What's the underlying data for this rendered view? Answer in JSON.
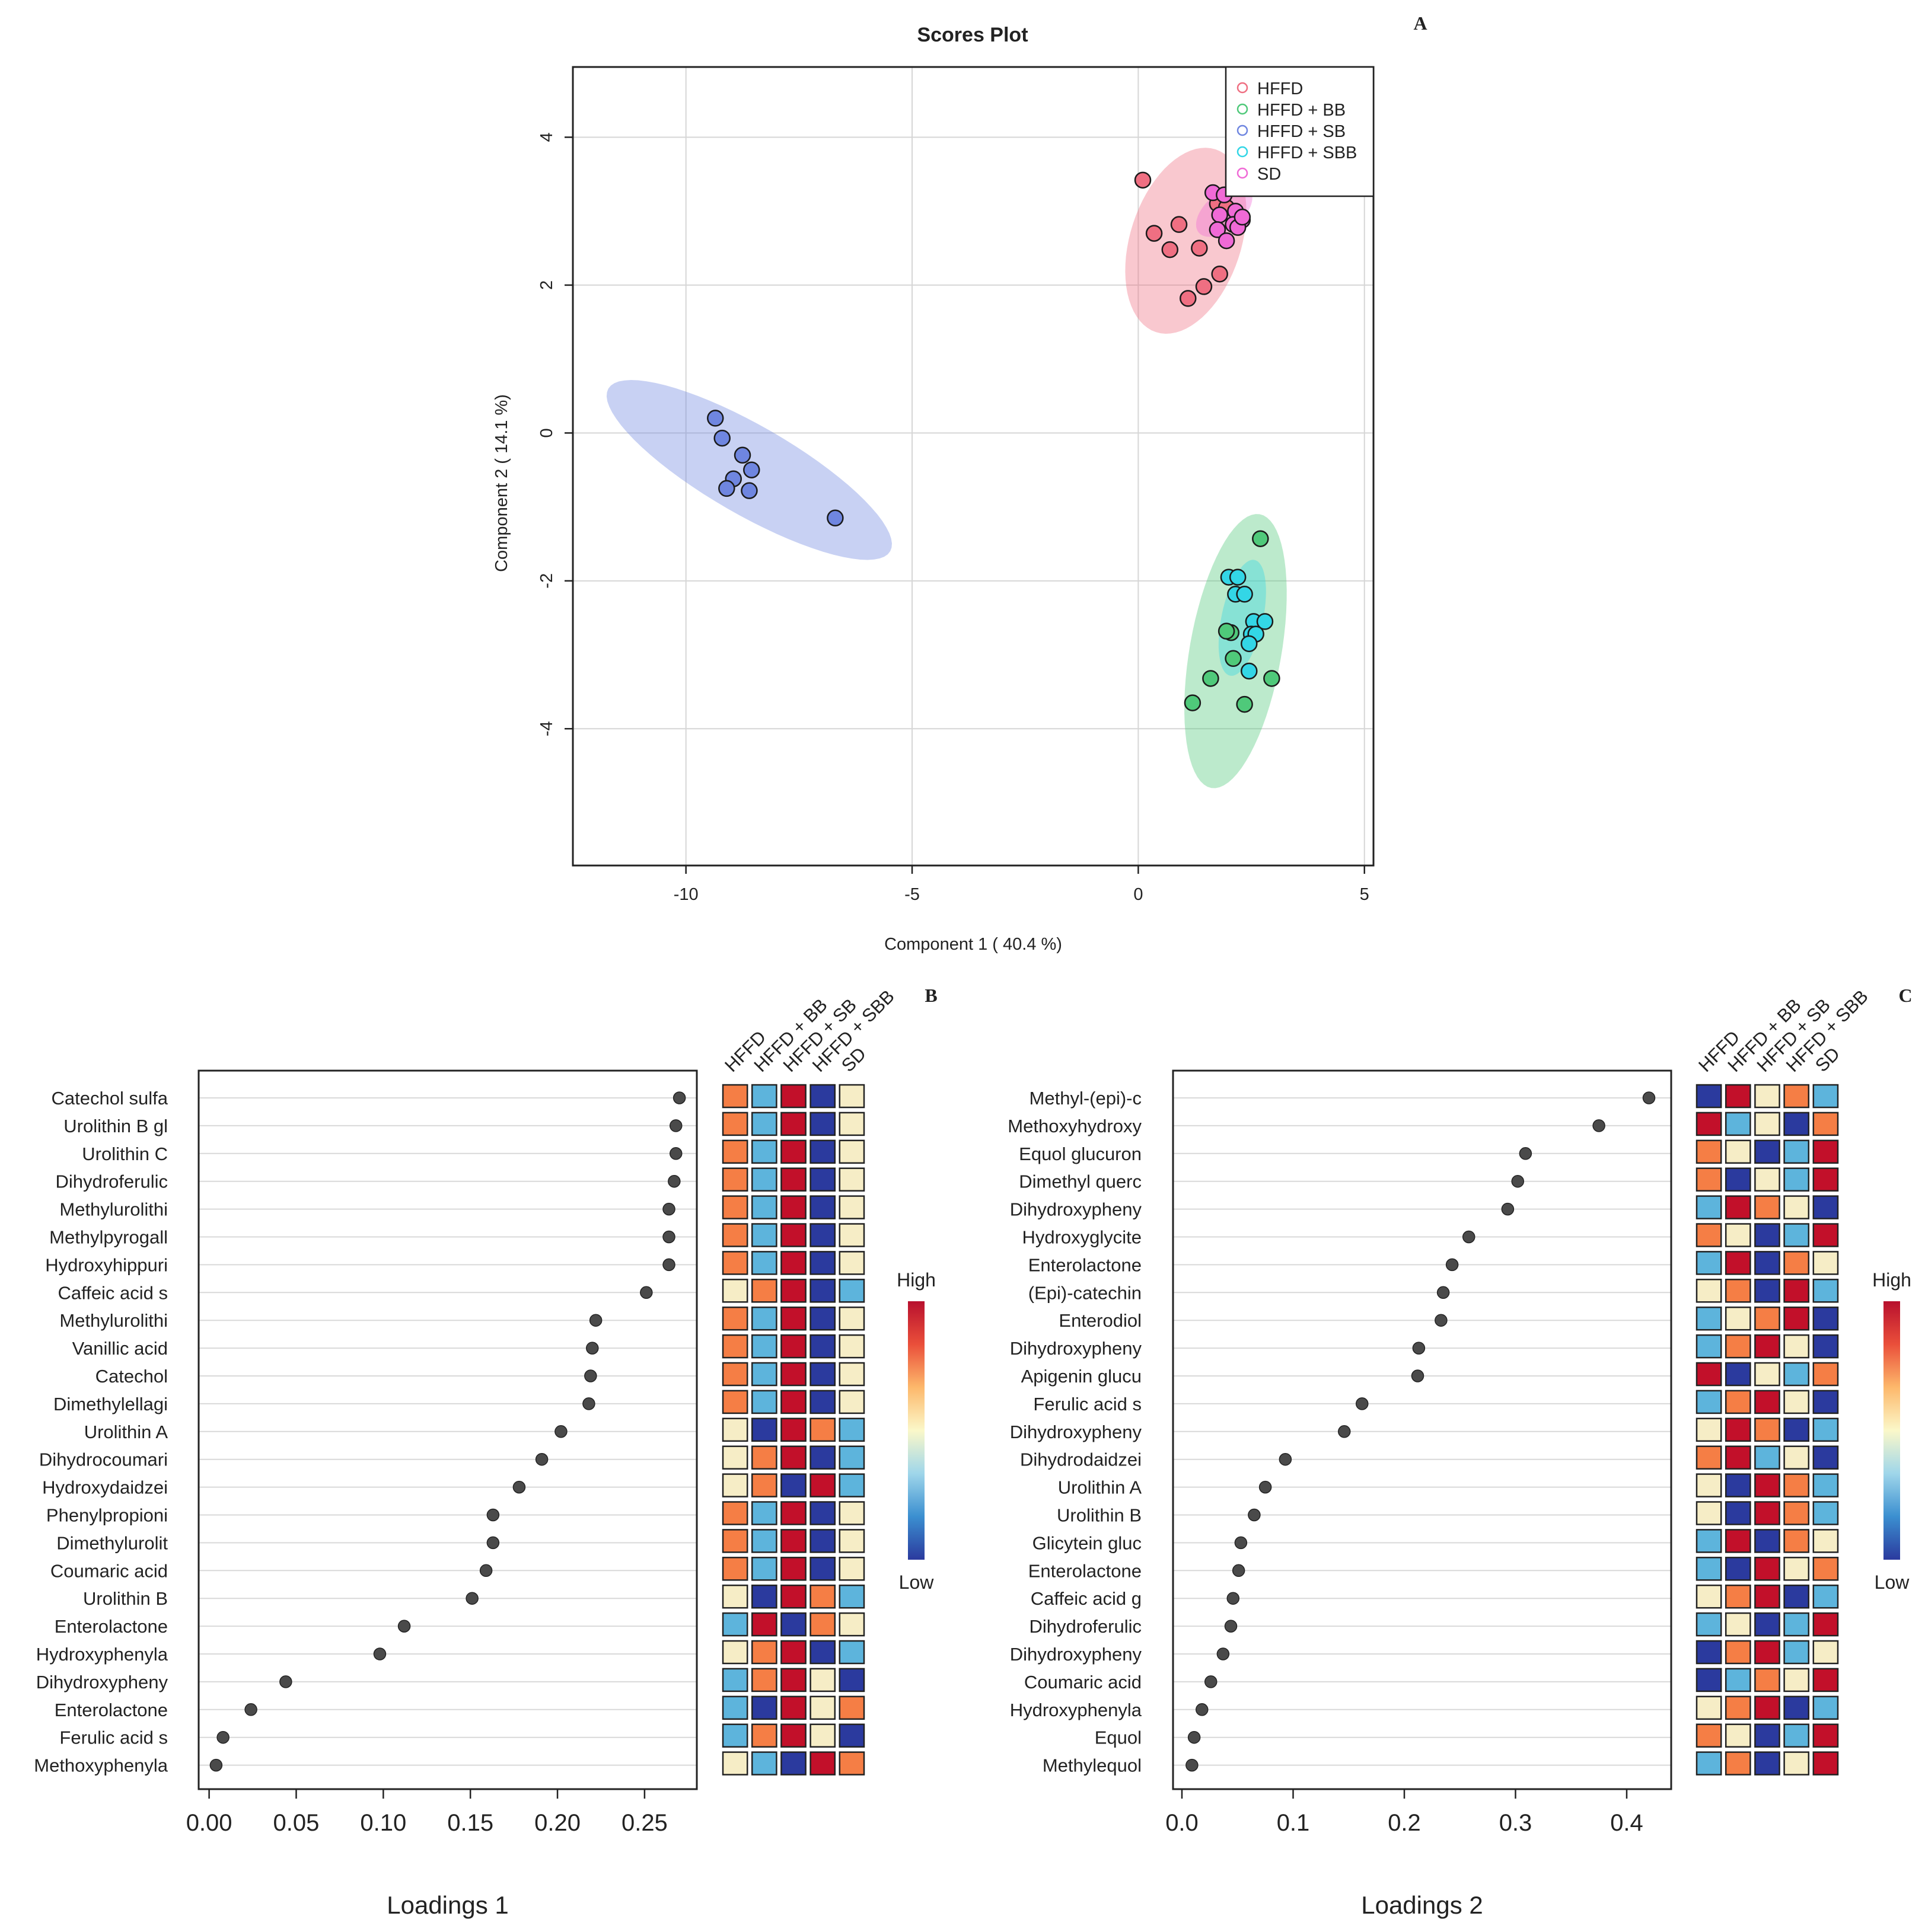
{
  "chart_data": [
    {
      "type": "scatter",
      "panel_label": "A",
      "title": "Scores Plot",
      "xlabel": "Component 1 ( 40.4 %)",
      "ylabel": "Component 2 ( 14.1 %)",
      "xlim": [
        -12.5,
        5.2
      ],
      "ylim": [
        -5.85,
        4.95
      ],
      "xticks": [
        -10,
        -5,
        0,
        5
      ],
      "yticks": [
        -4,
        -2,
        0,
        2,
        4
      ],
      "xtick_labels": [
        "-10",
        "-5",
        "0",
        "5"
      ],
      "ytick_labels": [
        "-4",
        "-2",
        "0",
        "2",
        "4"
      ],
      "grid": true,
      "legend_position": "top-right",
      "series": [
        {
          "name": "HFFD",
          "color": "#ef6f82",
          "ellipse": {
            "cx": 1.05,
            "cy": 2.6,
            "rx": 1.3,
            "ry": 0.75,
            "angle_deg": 72
          },
          "points": [
            [
              0.1,
              3.42
            ],
            [
              0.35,
              2.7
            ],
            [
              0.7,
              2.48
            ],
            [
              0.9,
              2.82
            ],
            [
              1.1,
              1.82
            ],
            [
              1.35,
              2.5
            ],
            [
              1.45,
              1.98
            ],
            [
              1.8,
              2.15
            ],
            [
              1.75,
              3.1
            ],
            [
              1.95,
              3.05
            ]
          ]
        },
        {
          "name": "HFFD + BB",
          "color": "#4fc97a",
          "ellipse": {
            "cx": 2.15,
            "cy": -2.95,
            "rx": 1.88,
            "ry": 0.62,
            "angle_deg": 80
          },
          "points": [
            [
              2.7,
              -1.43
            ],
            [
              2.05,
              -2.7
            ],
            [
              1.95,
              -2.68
            ],
            [
              2.1,
              -3.05
            ],
            [
              1.6,
              -3.32
            ],
            [
              1.2,
              -3.65
            ],
            [
              2.35,
              -3.67
            ],
            [
              2.95,
              -3.32
            ]
          ]
        },
        {
          "name": "HFFD + SB",
          "color": "#6f86e0",
          "ellipse": {
            "cx": -8.6,
            "cy": -0.5,
            "rx": 2.2,
            "ry": 0.6,
            "angle_deg": -30
          },
          "points": [
            [
              -9.35,
              0.2
            ],
            [
              -9.2,
              -0.07
            ],
            [
              -8.75,
              -0.3
            ],
            [
              -8.55,
              -0.5
            ],
            [
              -8.95,
              -0.62
            ],
            [
              -9.1,
              -0.75
            ],
            [
              -8.6,
              -0.78
            ],
            [
              -6.7,
              -1.15
            ]
          ]
        },
        {
          "name": "HFFD + SBB",
          "color": "#33d6e6",
          "ellipse": {
            "cx": 2.3,
            "cy": -2.5,
            "rx": 0.8,
            "ry": 0.28,
            "angle_deg": 78
          },
          "points": [
            [
              2.0,
              -1.95
            ],
            [
              2.2,
              -1.95
            ],
            [
              2.15,
              -2.18
            ],
            [
              2.35,
              -2.18
            ],
            [
              2.55,
              -2.55
            ],
            [
              2.8,
              -2.55
            ],
            [
              2.5,
              -2.72
            ],
            [
              2.6,
              -2.72
            ],
            [
              2.45,
              -2.85
            ],
            [
              2.45,
              -3.22
            ]
          ]
        },
        {
          "name": "SD",
          "color": "#f06ad6",
          "ellipse": {
            "cx": 1.9,
            "cy": 3.0,
            "rx": 0.45,
            "ry": 0.25,
            "angle_deg": 40
          },
          "points": [
            [
              1.65,
              3.25
            ],
            [
              1.9,
              3.22
            ],
            [
              2.15,
              3.0
            ],
            [
              1.8,
              2.95
            ],
            [
              2.3,
              2.88
            ],
            [
              2.1,
              2.82
            ],
            [
              1.75,
              2.75
            ],
            [
              2.2,
              2.78
            ],
            [
              1.95,
              2.6
            ],
            [
              2.3,
              2.92
            ]
          ]
        }
      ]
    },
    {
      "type": "dot",
      "panel_label": "B",
      "xlabel": "Loadings 1",
      "xlim": [
        -0.006,
        0.28
      ],
      "xticks": [
        0.0,
        0.05,
        0.1,
        0.15,
        0.2,
        0.25
      ],
      "xtick_labels": [
        "0.00",
        "0.05",
        "0.10",
        "0.15",
        "0.20",
        "0.25"
      ],
      "categories": [
        "Catechol sulfa",
        "Urolithin B gl",
        "Urolithin C",
        "Dihydroferulic",
        "Methylurolithi",
        "Methylpyrogall",
        "Hydroxyhippuri",
        "Caffeic acid s",
        "Methylurolithi",
        "Vanillic acid ",
        "Catechol",
        "Dimethylellagi",
        "Urolithin A",
        "Dihydrocoumari",
        "Hydroxydaidzei",
        "Phenylpropioni",
        "Dimethylurolit",
        "Coumaric acid ",
        "Urolithin B",
        "Enterolactone",
        "Hydroxyphenyla",
        "Dihydroxypheny",
        "Enterolactone",
        "Ferulic acid s",
        "Methoxyphenyla"
      ],
      "values": [
        0.27,
        0.268,
        0.268,
        0.267,
        0.264,
        0.264,
        0.264,
        0.251,
        0.222,
        0.22,
        0.219,
        0.218,
        0.202,
        0.191,
        0.178,
        0.163,
        0.163,
        0.159,
        0.151,
        0.112,
        0.098,
        0.044,
        0.024,
        0.008,
        0.004
      ],
      "heatmap": {
        "columns": [
          "HFFD",
          "HFFD + BB",
          "HFFD + SB",
          "HFFD + SBB",
          "SD"
        ],
        "scale_labels": [
          "High",
          "Low"
        ],
        "levels": [
          [
            1,
            -1,
            2,
            -2,
            0
          ],
          [
            1,
            -1,
            2,
            -2,
            0
          ],
          [
            1,
            -1,
            2,
            -2,
            0
          ],
          [
            1,
            -1,
            2,
            -2,
            0
          ],
          [
            1,
            -1,
            2,
            -2,
            0
          ],
          [
            1,
            -1,
            2,
            -2,
            0
          ],
          [
            1,
            -1,
            2,
            -2,
            0
          ],
          [
            0,
            1,
            2,
            -2,
            -1
          ],
          [
            1,
            -1,
            2,
            -2,
            0
          ],
          [
            1,
            -1,
            2,
            -2,
            0
          ],
          [
            1,
            -1,
            2,
            -2,
            0
          ],
          [
            1,
            -1,
            2,
            -2,
            0
          ],
          [
            0,
            -2,
            2,
            1,
            -1
          ],
          [
            0,
            1,
            2,
            -2,
            -1
          ],
          [
            0,
            1,
            -2,
            2,
            -1
          ],
          [
            1,
            -1,
            2,
            -2,
            0
          ],
          [
            1,
            -1,
            2,
            -2,
            0
          ],
          [
            1,
            -1,
            2,
            -2,
            0
          ],
          [
            0,
            -2,
            2,
            1,
            -1
          ],
          [
            -1,
            2,
            -2,
            1,
            0
          ],
          [
            0,
            1,
            2,
            -2,
            -1
          ],
          [
            -1,
            1,
            2,
            0,
            -2
          ],
          [
            -1,
            -2,
            2,
            0,
            1
          ],
          [
            -1,
            1,
            2,
            0,
            -2
          ],
          [
            0,
            -1,
            -2,
            2,
            1
          ]
        ]
      }
    },
    {
      "type": "dot",
      "panel_label": "C",
      "xlabel": "Loadings 2",
      "xlim": [
        -0.008,
        0.44
      ],
      "xticks": [
        0.0,
        0.1,
        0.2,
        0.3,
        0.4
      ],
      "xtick_labels": [
        "0.0",
        "0.1",
        "0.2",
        "0.3",
        "0.4"
      ],
      "categories": [
        "Methyl-(epi)-c",
        "Methoxyhydroxy",
        "Equol glucuron",
        "Dimethyl querc",
        "Dihydroxypheny",
        "Hydroxyglycite",
        "Enterolactone",
        "(Epi)-catechin",
        "Enterodiol",
        "Dihydroxypheny",
        "Apigenin glucu",
        "Ferulic acid s",
        "Dihydroxypheny",
        "Dihydrodaidzei",
        "Urolithin A",
        "Urolithin B",
        "Glicytein gluc",
        "Enterolactone ",
        "Caffeic acid g",
        "Dihydroferulic",
        "Dihydroxypheny",
        "Coumaric acid",
        "Hydroxyphenyla",
        "Equol",
        "Methylequol"
      ],
      "values": [
        0.42,
        0.375,
        0.309,
        0.302,
        0.293,
        0.258,
        0.243,
        0.235,
        0.233,
        0.213,
        0.212,
        0.162,
        0.146,
        0.093,
        0.075,
        0.065,
        0.053,
        0.051,
        0.046,
        0.044,
        0.037,
        0.026,
        0.018,
        0.011,
        0.009
      ],
      "heatmap": {
        "columns": [
          "HFFD",
          "HFFD + BB",
          "HFFD + SB",
          "HFFD + SBB",
          "SD"
        ],
        "scale_labels": [
          "High",
          "Low"
        ],
        "levels": [
          [
            -2,
            2,
            0,
            1,
            -1
          ],
          [
            2,
            -1,
            0,
            -2,
            1
          ],
          [
            1,
            0,
            -2,
            -1,
            2
          ],
          [
            1,
            -2,
            0,
            -1,
            2
          ],
          [
            -1,
            2,
            1,
            0,
            -2
          ],
          [
            1,
            0,
            -2,
            -1,
            2
          ],
          [
            -1,
            2,
            -2,
            1,
            0
          ],
          [
            0,
            1,
            -2,
            2,
            -1
          ],
          [
            -1,
            0,
            1,
            2,
            -2
          ],
          [
            -1,
            1,
            2,
            0,
            -2
          ],
          [
            2,
            -2,
            0,
            -1,
            1
          ],
          [
            -1,
            1,
            2,
            0,
            -2
          ],
          [
            0,
            2,
            1,
            -2,
            -1
          ],
          [
            1,
            2,
            -1,
            0,
            -2
          ],
          [
            0,
            -2,
            2,
            1,
            -1
          ],
          [
            0,
            -2,
            2,
            1,
            -1
          ],
          [
            -1,
            2,
            -2,
            1,
            0
          ],
          [
            -1,
            -2,
            2,
            0,
            1
          ],
          [
            0,
            1,
            2,
            -2,
            -1
          ],
          [
            -1,
            0,
            -2,
            -1,
            2
          ],
          [
            -2,
            1,
            2,
            -1,
            0
          ],
          [
            -2,
            -1,
            1,
            0,
            2
          ],
          [
            0,
            1,
            2,
            -2,
            -1
          ],
          [
            1,
            0,
            -2,
            -1,
            2
          ],
          [
            -1,
            1,
            -2,
            0,
            2
          ]
        ]
      }
    }
  ],
  "palette": {
    "levels": {
      "-2": "#2b3a9e",
      "-1": "#5db4dc",
      "0": "#f6edc6",
      "1": "#f57e45",
      "2": "#c2102a"
    },
    "gradient": [
      "#2b3a9e",
      "#3b8fd0",
      "#9fd6ea",
      "#fbf8c9",
      "#fdb86b",
      "#ea4f3a",
      "#b8102e"
    ]
  }
}
